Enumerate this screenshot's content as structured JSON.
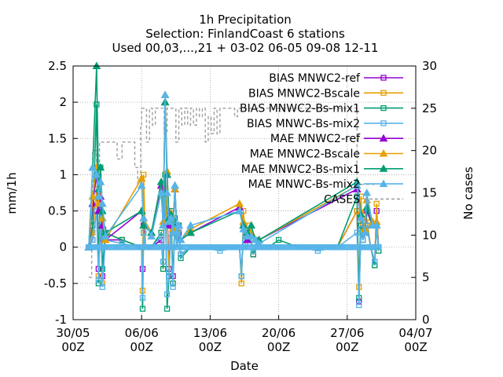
{
  "titles": [
    "1h Precipitation",
    "Selection: FinlandCoast      6 stations",
    "Used 00,03,...,21 + 03-02 06-05 09-08 12-11"
  ],
  "colors": {
    "MNWC2-ref": "#9400d3",
    "MNWC2-Bscale": "#e69f00",
    "MNWC2-Bs-mix1": "#009e73",
    "MNWC-Bs-mix2": "#56b4e9",
    "CASES": "#a0a0a0",
    "grid": "#a0a0a0"
  },
  "chart_data": {
    "type": "line",
    "xlabel": "Date",
    "ylabel": "mm/1h",
    "y2label": "No cases",
    "xlim": [
      "2030-05-30",
      "2030-07-04"
    ],
    "ylim": [
      -1,
      2.5
    ],
    "y2lim": [
      0,
      30
    ],
    "x_ticks": [
      {
        "label": "30/05",
        "sub": "00Z",
        "day": 0
      },
      {
        "label": "06/06",
        "sub": "00Z",
        "day": 7
      },
      {
        "label": "13/06",
        "sub": "00Z",
        "day": 14
      },
      {
        "label": "20/06",
        "sub": "00Z",
        "day": 21
      },
      {
        "label": "27/06",
        "sub": "00Z",
        "day": 28
      },
      {
        "label": "04/07",
        "sub": "00Z",
        "day": 35
      }
    ],
    "y_ticks": [
      "-1",
      "-0.5",
      "0",
      "0.5",
      "1",
      "1.5",
      "2",
      "2.5"
    ],
    "y_tick_values": [
      -1,
      -0.5,
      0,
      0.5,
      1,
      1.5,
      2,
      2.5
    ],
    "y2_ticks": [
      "0",
      "5",
      "10",
      "15",
      "20",
      "25",
      "30"
    ],
    "y2_tick_values": [
      0,
      5,
      10,
      15,
      20,
      25,
      30
    ],
    "grid": true,
    "legend_position": "top-right",
    "series": [
      {
        "name": "BIAS MNWC2-ref",
        "color": "#9400d3",
        "marker": "square",
        "x": [
          1.6,
          2.0,
          2.4,
          2.6,
          2.8,
          3.0,
          3.3,
          5.0,
          7.0,
          7.1,
          7.2,
          7.4,
          8.0,
          9.0,
          9.2,
          9.4,
          9.6,
          9.8,
          10.0,
          10.2,
          10.4,
          10.6,
          10.8,
          11.0,
          12.0,
          13.0,
          15.0,
          17.0,
          17.2,
          17.4,
          17.6,
          18.0,
          18.4,
          18.8,
          19.0,
          19.4,
          20.0,
          21.0,
          23.0,
          25.0,
          27.0,
          29.0,
          29.2,
          29.4,
          29.6,
          30.0,
          30.4,
          30.8,
          31.0,
          31.2
        ],
        "y": [
          0,
          0.1,
          0.5,
          -0.3,
          0.3,
          -0.4,
          0.1,
          0.1,
          0,
          -0.3,
          0.3,
          0,
          0,
          0.1,
          -0.2,
          0.8,
          0.5,
          -0.3,
          0.4,
          -0.4,
          0.3,
          0,
          0.2,
          -0.1,
          0,
          0,
          0,
          0,
          -0.4,
          0.3,
          0.1,
          0.2,
          -0.1,
          0.1,
          0,
          0,
          0,
          0,
          0,
          0,
          0,
          0.5,
          -0.75,
          0.3,
          0.1,
          0.3,
          0,
          -0.2,
          0.5,
          0
        ]
      },
      {
        "name": "BIAS MNWC2-Bscale",
        "color": "#e69f00",
        "marker": "square",
        "x": [
          1.6,
          2.0,
          2.4,
          2.6,
          2.8,
          3.0,
          3.3,
          5.0,
          7.0,
          7.1,
          7.2,
          7.4,
          8.0,
          9.0,
          9.2,
          9.4,
          9.6,
          9.8,
          10.0,
          10.2,
          10.4,
          10.6,
          10.8,
          11.0,
          12.0,
          13.0,
          15.0,
          17.0,
          17.2,
          17.4,
          17.6,
          18.0,
          18.4,
          18.8,
          19.0,
          19.4,
          20.0,
          21.0,
          23.0,
          25.0,
          27.0,
          29.0,
          29.2,
          29.4,
          29.6,
          30.0,
          30.4,
          30.8,
          31.0,
          31.2
        ],
        "y": [
          0,
          0.2,
          0.8,
          -0.4,
          0.5,
          -0.5,
          0.2,
          0.1,
          0,
          -0.6,
          1.0,
          0,
          0,
          0.2,
          -0.3,
          1.0,
          0.4,
          -0.4,
          0.5,
          -0.5,
          0.4,
          0,
          0.3,
          -0.1,
          0,
          0,
          0,
          0,
          -0.5,
          0.5,
          0.1,
          0.3,
          -0.1,
          0.1,
          0,
          0,
          0,
          0,
          0,
          0,
          0,
          0.5,
          -0.55,
          0.7,
          0.1,
          0.4,
          0,
          -0.25,
          0.6,
          -0.05
        ]
      },
      {
        "name": "BIAS MNWC2-Bs-mix1",
        "color": "#009e73",
        "marker": "square",
        "x": [
          1.6,
          2.0,
          2.4,
          2.6,
          2.8,
          3.0,
          3.3,
          5.0,
          7.0,
          7.1,
          7.2,
          7.4,
          8.0,
          9.0,
          9.2,
          9.4,
          9.6,
          9.8,
          10.0,
          10.2,
          10.4,
          10.6,
          10.8,
          11.0,
          12.0,
          13.0,
          15.0,
          17.0,
          17.2,
          17.4,
          17.6,
          18.0,
          18.4,
          18.8,
          19.0,
          19.4,
          20.0,
          21.0,
          23.0,
          25.0,
          27.0,
          29.0,
          29.2,
          29.4,
          29.6,
          30.0,
          30.4,
          30.8,
          31.0,
          31.2
        ],
        "y": [
          0,
          0.3,
          1.97,
          -0.5,
          1.1,
          -0.3,
          0.2,
          0.1,
          0,
          -0.85,
          0.2,
          0,
          0,
          0.2,
          -0.3,
          1.0,
          -0.85,
          -0.4,
          0.5,
          -0.5,
          0.4,
          0,
          0.3,
          -0.15,
          0,
          0,
          0,
          0,
          -0.4,
          0.3,
          0.1,
          0.2,
          -0.1,
          0.1,
          0,
          0,
          0,
          0.1,
          0,
          0,
          0,
          0.7,
          -0.7,
          0.3,
          0.1,
          0.3,
          0,
          -0.25,
          0.3,
          -0.05
        ]
      },
      {
        "name": "BIAS MNWC-Bs-mix2",
        "color": "#56b4e9",
        "marker": "square",
        "x": [
          1.6,
          2.0,
          2.4,
          2.6,
          2.8,
          3.0,
          3.3,
          5.0,
          7.0,
          7.1,
          7.2,
          7.4,
          8.0,
          9.0,
          9.2,
          9.4,
          9.6,
          9.8,
          10.0,
          10.2,
          10.4,
          10.6,
          10.8,
          11.0,
          12.0,
          13.0,
          15.0,
          17.0,
          17.2,
          17.4,
          17.6,
          18.0,
          18.4,
          18.8,
          19.0,
          19.4,
          20.0,
          21.0,
          23.0,
          25.0,
          27.0,
          29.0,
          29.2,
          29.4,
          29.6,
          30.0,
          30.4,
          30.8,
          31.0,
          31.2
        ],
        "y": [
          0,
          0.1,
          0.5,
          -0.45,
          0.5,
          -0.55,
          0.1,
          0.05,
          0,
          -0.7,
          0.2,
          0,
          0,
          0.15,
          -0.2,
          0.7,
          -0.65,
          -0.35,
          0.3,
          -0.55,
          0.3,
          0,
          0.25,
          -0.1,
          0,
          0,
          -0.05,
          0,
          -0.4,
          0.3,
          0.05,
          0.15,
          -0.05,
          0.1,
          0,
          0,
          0,
          0,
          0,
          -0.05,
          0,
          0.2,
          -0.8,
          0.25,
          0.1,
          0.3,
          0,
          -0.2,
          0.3,
          0
        ]
      },
      {
        "name": "MAE MNWC2-ref",
        "color": "#9400d3",
        "marker": "triangle",
        "x": [
          1.6,
          2.0,
          2.4,
          2.6,
          2.8,
          3.0,
          3.3,
          7.0,
          7.2,
          8.0,
          9.0,
          9.2,
          9.4,
          9.6,
          9.8,
          10.0,
          10.2,
          10.4,
          10.6,
          10.8,
          11.0,
          12.0,
          17.0,
          17.4,
          17.8,
          18.2,
          18.6,
          19.0,
          29.0,
          29.4,
          29.8,
          30.0,
          30.6,
          31.0
        ],
        "y": [
          0,
          0.6,
          1.0,
          0.5,
          0.7,
          0.3,
          0.1,
          0.5,
          0.3,
          0.2,
          0.85,
          0.3,
          2.0,
          1.0,
          0.3,
          0.45,
          0.2,
          0.8,
          0.2,
          0.3,
          0.1,
          0.2,
          0.55,
          0.3,
          0.1,
          0.2,
          0.1,
          0.1,
          0.8,
          0.4,
          0.2,
          0.5,
          0.3,
          0.3
        ]
      },
      {
        "name": "MAE MNWC2-Bscale",
        "color": "#e69f00",
        "marker": "triangle",
        "x": [
          1.6,
          2.0,
          2.4,
          2.6,
          2.8,
          3.0,
          3.3,
          7.0,
          7.2,
          8.0,
          9.0,
          9.2,
          9.4,
          9.6,
          9.8,
          10.0,
          10.2,
          10.4,
          10.6,
          10.8,
          11.0,
          12.0,
          17.0,
          17.4,
          17.8,
          18.2,
          18.6,
          19.0,
          29.0,
          29.4,
          29.8,
          30.0,
          30.6,
          31.0
        ],
        "y": [
          0,
          0.7,
          1.1,
          0.6,
          0.9,
          0.4,
          0.1,
          0.95,
          0.4,
          0.2,
          0.9,
          0.35,
          2.1,
          1.05,
          0.4,
          0.47,
          0.25,
          0.8,
          0.25,
          0.3,
          0.1,
          0.25,
          0.6,
          0.35,
          0.15,
          0.2,
          0.1,
          0.1,
          0.85,
          0.5,
          0.25,
          0.65,
          0.35,
          0.35
        ]
      },
      {
        "name": "MAE MNWC2-Bs-mix1",
        "color": "#009e73",
        "marker": "triangle",
        "x": [
          1.6,
          2.0,
          2.4,
          2.6,
          2.8,
          3.0,
          3.3,
          7.0,
          7.2,
          8.0,
          9.0,
          9.2,
          9.4,
          9.6,
          9.8,
          10.0,
          10.2,
          10.4,
          10.6,
          10.8,
          11.0,
          12.0,
          17.0,
          17.4,
          17.8,
          18.2,
          18.6,
          19.0,
          29.0,
          29.4,
          29.8,
          30.0,
          30.6,
          31.0
        ],
        "y": [
          0,
          1.1,
          2.5,
          0.8,
          1.1,
          0.5,
          0.2,
          0.5,
          0.3,
          0.2,
          0.9,
          0.3,
          2.0,
          1.0,
          0.4,
          0.45,
          0.2,
          0.85,
          0.2,
          0.3,
          0.1,
          0.2,
          0.5,
          0.3,
          0.2,
          0.3,
          0.1,
          0.1,
          0.9,
          0.45,
          0.2,
          0.55,
          0.3,
          0.3
        ]
      },
      {
        "name": "MAE MNWC-Bs-mix2",
        "color": "#56b4e9",
        "marker": "triangle",
        "x": [
          1.6,
          2.0,
          2.4,
          2.6,
          2.8,
          3.0,
          3.3,
          7.0,
          7.2,
          8.0,
          9.0,
          9.2,
          9.4,
          9.6,
          9.8,
          10.0,
          10.2,
          10.4,
          10.6,
          10.8,
          11.0,
          12.0,
          17.0,
          17.4,
          17.8,
          18.2,
          18.6,
          19.0,
          29.0,
          29.4,
          29.8,
          30.0,
          30.6,
          31.0
        ],
        "y": [
          0,
          1.1,
          1.0,
          0.7,
          0.9,
          0.6,
          0.15,
          0.85,
          0.4,
          0.15,
          0.75,
          0.3,
          2.1,
          0.75,
          0.35,
          0.4,
          0.2,
          0.85,
          0.2,
          0.3,
          0.1,
          0.3,
          0.5,
          0.25,
          0.15,
          0.15,
          0.1,
          0.05,
          0.85,
          0.4,
          0.2,
          0.75,
          0.3,
          0.3
        ]
      },
      {
        "name": "CASES",
        "color": "#a0a0a0",
        "marker": "none",
        "axis": "y2",
        "dashed": true,
        "x": [
          1.6,
          1.9,
          2.0,
          2.3,
          2.4,
          2.7,
          3.0,
          4.4,
          4.5,
          5.0,
          6.0,
          6.3,
          6.6,
          6.9,
          7.0,
          7.2,
          7.5,
          7.8,
          8.1,
          8.4,
          8.7,
          9.0,
          9.3,
          9.6,
          9.9,
          10.2,
          10.5,
          10.8,
          11.1,
          11.4,
          11.7,
          12.0,
          12.3,
          12.6,
          12.9,
          13.2,
          13.5,
          13.8,
          14.1,
          14.4,
          14.7,
          15.0,
          15.3,
          15.6,
          15.9,
          16.2,
          16.5,
          16.8,
          17.0,
          18.0,
          20.0,
          22.0,
          24.0,
          26.0,
          28.0,
          29.0,
          29.5,
          30.0,
          30.5,
          31.0
        ],
        "y": [
          5,
          15,
          20,
          20,
          18,
          21,
          21,
          21,
          19,
          21,
          21,
          18,
          16,
          23,
          25,
          25,
          21,
          25,
          23,
          25,
          25,
          25,
          22,
          25,
          25,
          25,
          21,
          25,
          23,
          25,
          23,
          25,
          23,
          25,
          24,
          25,
          21,
          24,
          22,
          25,
          22,
          25,
          25,
          25,
          25,
          25,
          24,
          25,
          25,
          25,
          25,
          25,
          25,
          25,
          25,
          16,
          16,
          16,
          16,
          16
        ]
      }
    ]
  }
}
